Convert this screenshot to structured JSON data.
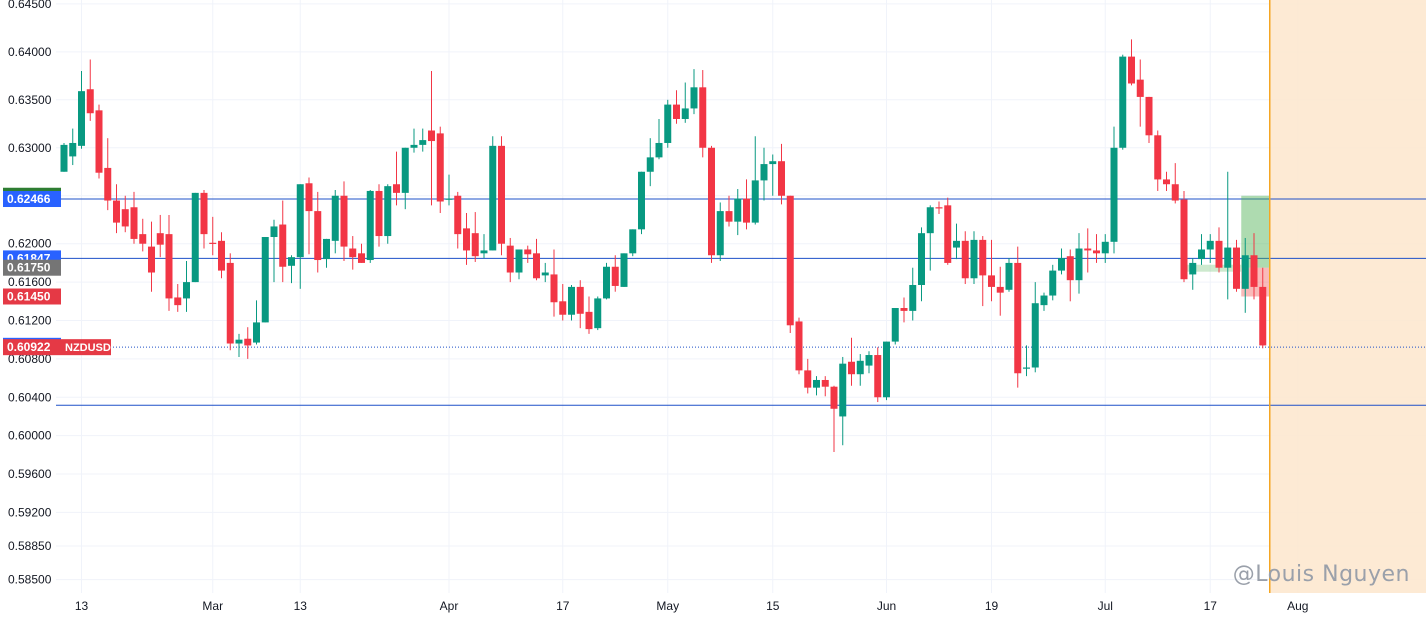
{
  "chart_data": {
    "type": "candlestick",
    "symbol": "NZDUSD",
    "price_scale": {
      "min": 0.5836,
      "max": 0.6454,
      "ticks": [
        "0.64500",
        "0.64000",
        "0.63500",
        "0.63000",
        "0.62500",
        "0.62000",
        "0.61600",
        "0.61200",
        "0.60800",
        "0.60400",
        "0.60000",
        "0.59600",
        "0.59200",
        "0.58850",
        "0.58500"
      ]
    },
    "x_ticks": [
      "13",
      "Mar",
      "13",
      "Apr",
      "17",
      "May",
      "15",
      "Jun",
      "19",
      "Jul",
      "17",
      "Aug"
    ],
    "horizontal_lines": [
      {
        "value": 0.62466,
        "color": "#1e50c8"
      },
      {
        "value": 0.61847,
        "color": "#1e50c8"
      },
      {
        "value": 0.60922,
        "color": "#1e50c8",
        "dotted": true
      },
      {
        "value": 0.60317,
        "color": "#1e50c8"
      }
    ],
    "price_labels": [
      {
        "text": "0.62500",
        "value": 0.625,
        "color": "#2e7d32"
      },
      {
        "text": "0.62466",
        "value": 0.62466,
        "color": "#2962ff"
      },
      {
        "text": "0.61847",
        "value": 0.61847,
        "color": "#2962ff"
      },
      {
        "text": "0.61750",
        "value": 0.6175,
        "color": "#757575"
      },
      {
        "text": "0.61450",
        "value": 0.6145,
        "color": "#e53945"
      },
      {
        "text": "0.60936",
        "value": 0.60936,
        "color": "#2962ff"
      },
      {
        "text": "0.60922",
        "value": 0.60922,
        "color": "#e53945"
      }
    ],
    "symbol_label": "NZDUSD",
    "colors": {
      "up": "#089981",
      "down": "#f23645",
      "grid": "#f0f3fa",
      "axis_text": "#131722"
    },
    "position_box": {
      "entry": 0.6175,
      "target": 0.625,
      "stop": 0.6145
    },
    "candles": [
      [
        0.6275,
        0.6305,
        0.6303,
        0.629
      ],
      [
        0.6291,
        0.632,
        0.6305,
        0.6282
      ],
      [
        0.6302,
        0.638,
        0.6359,
        0.6299
      ],
      [
        0.6361,
        0.6392,
        0.6336,
        0.6328
      ],
      [
        0.6339,
        0.6345,
        0.6274,
        0.6268
      ],
      [
        0.6279,
        0.631,
        0.6245,
        0.6235
      ],
      [
        0.6245,
        0.6262,
        0.6222,
        0.6211
      ],
      [
        0.6236,
        0.625,
        0.6218,
        0.6212
      ],
      [
        0.6238,
        0.6254,
        0.6205,
        0.62
      ],
      [
        0.621,
        0.6226,
        0.62,
        0.6192
      ],
      [
        0.6197,
        0.6223,
        0.617,
        0.615
      ],
      [
        0.6211,
        0.623,
        0.6199,
        0.6186
      ],
      [
        0.621,
        0.623,
        0.6143,
        0.613
      ],
      [
        0.6144,
        0.6158,
        0.6136,
        0.6129
      ],
      [
        0.6143,
        0.6182,
        0.616,
        0.6129
      ],
      [
        0.616,
        0.624,
        0.6253,
        0.6241
      ],
      [
        0.6253,
        0.6256,
        0.621,
        0.6195
      ],
      [
        0.6201,
        0.6228,
        0.62,
        0.6188
      ],
      [
        0.6203,
        0.6212,
        0.6172,
        0.6164
      ],
      [
        0.618,
        0.619,
        0.6096,
        0.6089
      ],
      [
        0.6096,
        0.6106,
        0.61,
        0.6082
      ],
      [
        0.6101,
        0.6113,
        0.6094,
        0.608
      ],
      [
        0.6097,
        0.6141,
        0.6118,
        0.6095
      ],
      [
        0.6118,
        0.6196,
        0.6207,
        0.6143
      ],
      [
        0.6207,
        0.6225,
        0.6218,
        0.616
      ],
      [
        0.622,
        0.6245,
        0.6176,
        0.616
      ],
      [
        0.6177,
        0.6188,
        0.6186,
        0.6159
      ],
      [
        0.6186,
        0.6258,
        0.6262,
        0.6153
      ],
      [
        0.6263,
        0.6269,
        0.6234,
        0.6189
      ],
      [
        0.6234,
        0.6254,
        0.6183,
        0.617
      ],
      [
        0.6184,
        0.6198,
        0.6205,
        0.6175
      ],
      [
        0.6203,
        0.6256,
        0.625,
        0.619
      ],
      [
        0.625,
        0.6265,
        0.6197,
        0.6182
      ],
      [
        0.6195,
        0.6208,
        0.6186,
        0.6173
      ],
      [
        0.619,
        0.62,
        0.618,
        0.618
      ],
      [
        0.6183,
        0.6256,
        0.6255,
        0.618
      ],
      [
        0.6255,
        0.6262,
        0.6208,
        0.6197
      ],
      [
        0.6208,
        0.6262,
        0.626,
        0.62
      ],
      [
        0.6262,
        0.6296,
        0.6253,
        0.624
      ],
      [
        0.6253,
        0.63,
        0.63,
        0.6236
      ],
      [
        0.63,
        0.632,
        0.6303,
        0.6295
      ],
      [
        0.6303,
        0.632,
        0.6308,
        0.6296
      ],
      [
        0.6318,
        0.638,
        0.6307,
        0.624
      ],
      [
        0.6315,
        0.6322,
        0.6244,
        0.6232
      ],
      [
        0.6247,
        0.6272,
        0.6247,
        0.624
      ],
      [
        0.625,
        0.6254,
        0.621,
        0.6195
      ],
      [
        0.6216,
        0.6232,
        0.6193,
        0.6178
      ],
      [
        0.6211,
        0.6233,
        0.6187,
        0.6181
      ],
      [
        0.619,
        0.621,
        0.6193,
        0.6185
      ],
      [
        0.6193,
        0.6312,
        0.6302,
        0.6212
      ],
      [
        0.6302,
        0.6312,
        0.62,
        0.6188
      ],
      [
        0.6198,
        0.6206,
        0.617,
        0.616
      ],
      [
        0.617,
        0.6192,
        0.6194,
        0.6163
      ],
      [
        0.6194,
        0.6198,
        0.6189,
        0.618
      ],
      [
        0.619,
        0.6205,
        0.6164,
        0.6162
      ],
      [
        0.6167,
        0.618,
        0.617,
        0.616
      ],
      [
        0.6168,
        0.6194,
        0.6139,
        0.6124
      ],
      [
        0.614,
        0.6158,
        0.6126,
        0.612
      ],
      [
        0.6126,
        0.6157,
        0.6155,
        0.612
      ],
      [
        0.6155,
        0.6162,
        0.6127,
        0.6112
      ],
      [
        0.6129,
        0.6145,
        0.6111,
        0.6106
      ],
      [
        0.6112,
        0.6145,
        0.6143,
        0.611
      ],
      [
        0.6143,
        0.618,
        0.6176,
        0.6142
      ],
      [
        0.6176,
        0.6188,
        0.6156,
        0.615
      ],
      [
        0.6155,
        0.6175,
        0.619,
        0.6155
      ],
      [
        0.619,
        0.621,
        0.6215,
        0.6187
      ],
      [
        0.6215,
        0.626,
        0.6275,
        0.621
      ],
      [
        0.6275,
        0.631,
        0.629,
        0.626
      ],
      [
        0.629,
        0.633,
        0.6305,
        0.6288
      ],
      [
        0.6305,
        0.635,
        0.6345,
        0.63
      ],
      [
        0.6345,
        0.636,
        0.633,
        0.6325
      ],
      [
        0.633,
        0.6368,
        0.6341,
        0.6326
      ],
      [
        0.6341,
        0.6382,
        0.6363,
        0.6335
      ],
      [
        0.6363,
        0.6381,
        0.63,
        0.629
      ],
      [
        0.63,
        0.6302,
        0.6188,
        0.618
      ],
      [
        0.6188,
        0.6243,
        0.6234,
        0.6182
      ],
      [
        0.6234,
        0.625,
        0.6223,
        0.6218
      ],
      [
        0.6223,
        0.6257,
        0.6247,
        0.6209
      ],
      [
        0.6247,
        0.6267,
        0.6222,
        0.6215
      ],
      [
        0.6222,
        0.6312,
        0.6266,
        0.622
      ],
      [
        0.6266,
        0.63,
        0.6283,
        0.6245
      ],
      [
        0.6283,
        0.6293,
        0.6286,
        0.625
      ],
      [
        0.6286,
        0.6304,
        0.625,
        0.6241
      ],
      [
        0.625,
        0.625,
        0.6115,
        0.6107
      ],
      [
        0.6119,
        0.6123,
        0.6068,
        0.6064
      ],
      [
        0.6068,
        0.608,
        0.605,
        0.6044
      ],
      [
        0.605,
        0.6062,
        0.6058,
        0.6042
      ],
      [
        0.6058,
        0.6062,
        0.6051,
        0.6041
      ],
      [
        0.6051,
        0.6052,
        0.6028,
        0.5983
      ],
      [
        0.602,
        0.6082,
        0.6075,
        0.599
      ],
      [
        0.6077,
        0.6102,
        0.6064,
        0.6052
      ],
      [
        0.6064,
        0.6085,
        0.6078,
        0.6052
      ],
      [
        0.6073,
        0.6088,
        0.6084,
        0.6065
      ],
      [
        0.6084,
        0.6092,
        0.604,
        0.6035
      ],
      [
        0.604,
        0.6093,
        0.6098,
        0.6037
      ],
      [
        0.6098,
        0.6133,
        0.6133,
        0.6095
      ],
      [
        0.6133,
        0.6144,
        0.613,
        0.6118
      ],
      [
        0.613,
        0.6175,
        0.6157,
        0.612
      ],
      [
        0.6157,
        0.6217,
        0.6211,
        0.614
      ],
      [
        0.6211,
        0.624,
        0.6238,
        0.6172
      ],
      [
        0.6238,
        0.6244,
        0.6237,
        0.6231
      ],
      [
        0.624,
        0.6248,
        0.618,
        0.6178
      ],
      [
        0.6196,
        0.6221,
        0.6203,
        0.6184
      ],
      [
        0.6203,
        0.6213,
        0.6164,
        0.6158
      ],
      [
        0.6164,
        0.6213,
        0.6204,
        0.6158
      ],
      [
        0.6204,
        0.6208,
        0.6167,
        0.6135
      ],
      [
        0.6167,
        0.6204,
        0.6155,
        0.614
      ],
      [
        0.6155,
        0.6176,
        0.6149,
        0.6125
      ],
      [
        0.6152,
        0.6185,
        0.618,
        0.615
      ],
      [
        0.618,
        0.6197,
        0.6065,
        0.605
      ],
      [
        0.607,
        0.6094,
        0.6071,
        0.6062
      ],
      [
        0.6071,
        0.616,
        0.6138,
        0.6066
      ],
      [
        0.6136,
        0.6149,
        0.6146,
        0.613
      ],
      [
        0.6146,
        0.6178,
        0.6172,
        0.6141
      ],
      [
        0.6172,
        0.6195,
        0.6185,
        0.6168
      ],
      [
        0.6187,
        0.6194,
        0.6162,
        0.614
      ],
      [
        0.6162,
        0.6211,
        0.6195,
        0.6148
      ],
      [
        0.6195,
        0.6216,
        0.6193,
        0.617
      ],
      [
        0.6193,
        0.621,
        0.619,
        0.618
      ],
      [
        0.619,
        0.621,
        0.6202,
        0.618
      ],
      [
        0.6202,
        0.6322,
        0.63,
        0.619
      ],
      [
        0.63,
        0.6397,
        0.6395,
        0.6298
      ],
      [
        0.6395,
        0.6413,
        0.6367,
        0.6365
      ],
      [
        0.6371,
        0.6392,
        0.6353,
        0.6322
      ],
      [
        0.6353,
        0.634,
        0.6313,
        0.6305
      ],
      [
        0.6313,
        0.6318,
        0.6267,
        0.6255
      ],
      [
        0.6267,
        0.6275,
        0.6262,
        0.6255
      ],
      [
        0.6262,
        0.6284,
        0.6245,
        0.6242
      ],
      [
        0.6246,
        0.6255,
        0.6163,
        0.616
      ],
      [
        0.6168,
        0.6185,
        0.618,
        0.6152
      ],
      [
        0.6184,
        0.621,
        0.6194,
        0.6178
      ],
      [
        0.6194,
        0.621,
        0.6203,
        0.618
      ],
      [
        0.6203,
        0.6217,
        0.6175,
        0.617
      ],
      [
        0.6175,
        0.6275,
        0.6196,
        0.6142
      ],
      [
        0.6196,
        0.6204,
        0.6153,
        0.615
      ],
      [
        0.6153,
        0.6206,
        0.6188,
        0.6128
      ],
      [
        0.6188,
        0.6211,
        0.6155,
        0.6142
      ],
      [
        0.6155,
        0.6175,
        0.6094,
        0.6091
      ]
    ]
  },
  "watermark": "@Louis Nguyen"
}
